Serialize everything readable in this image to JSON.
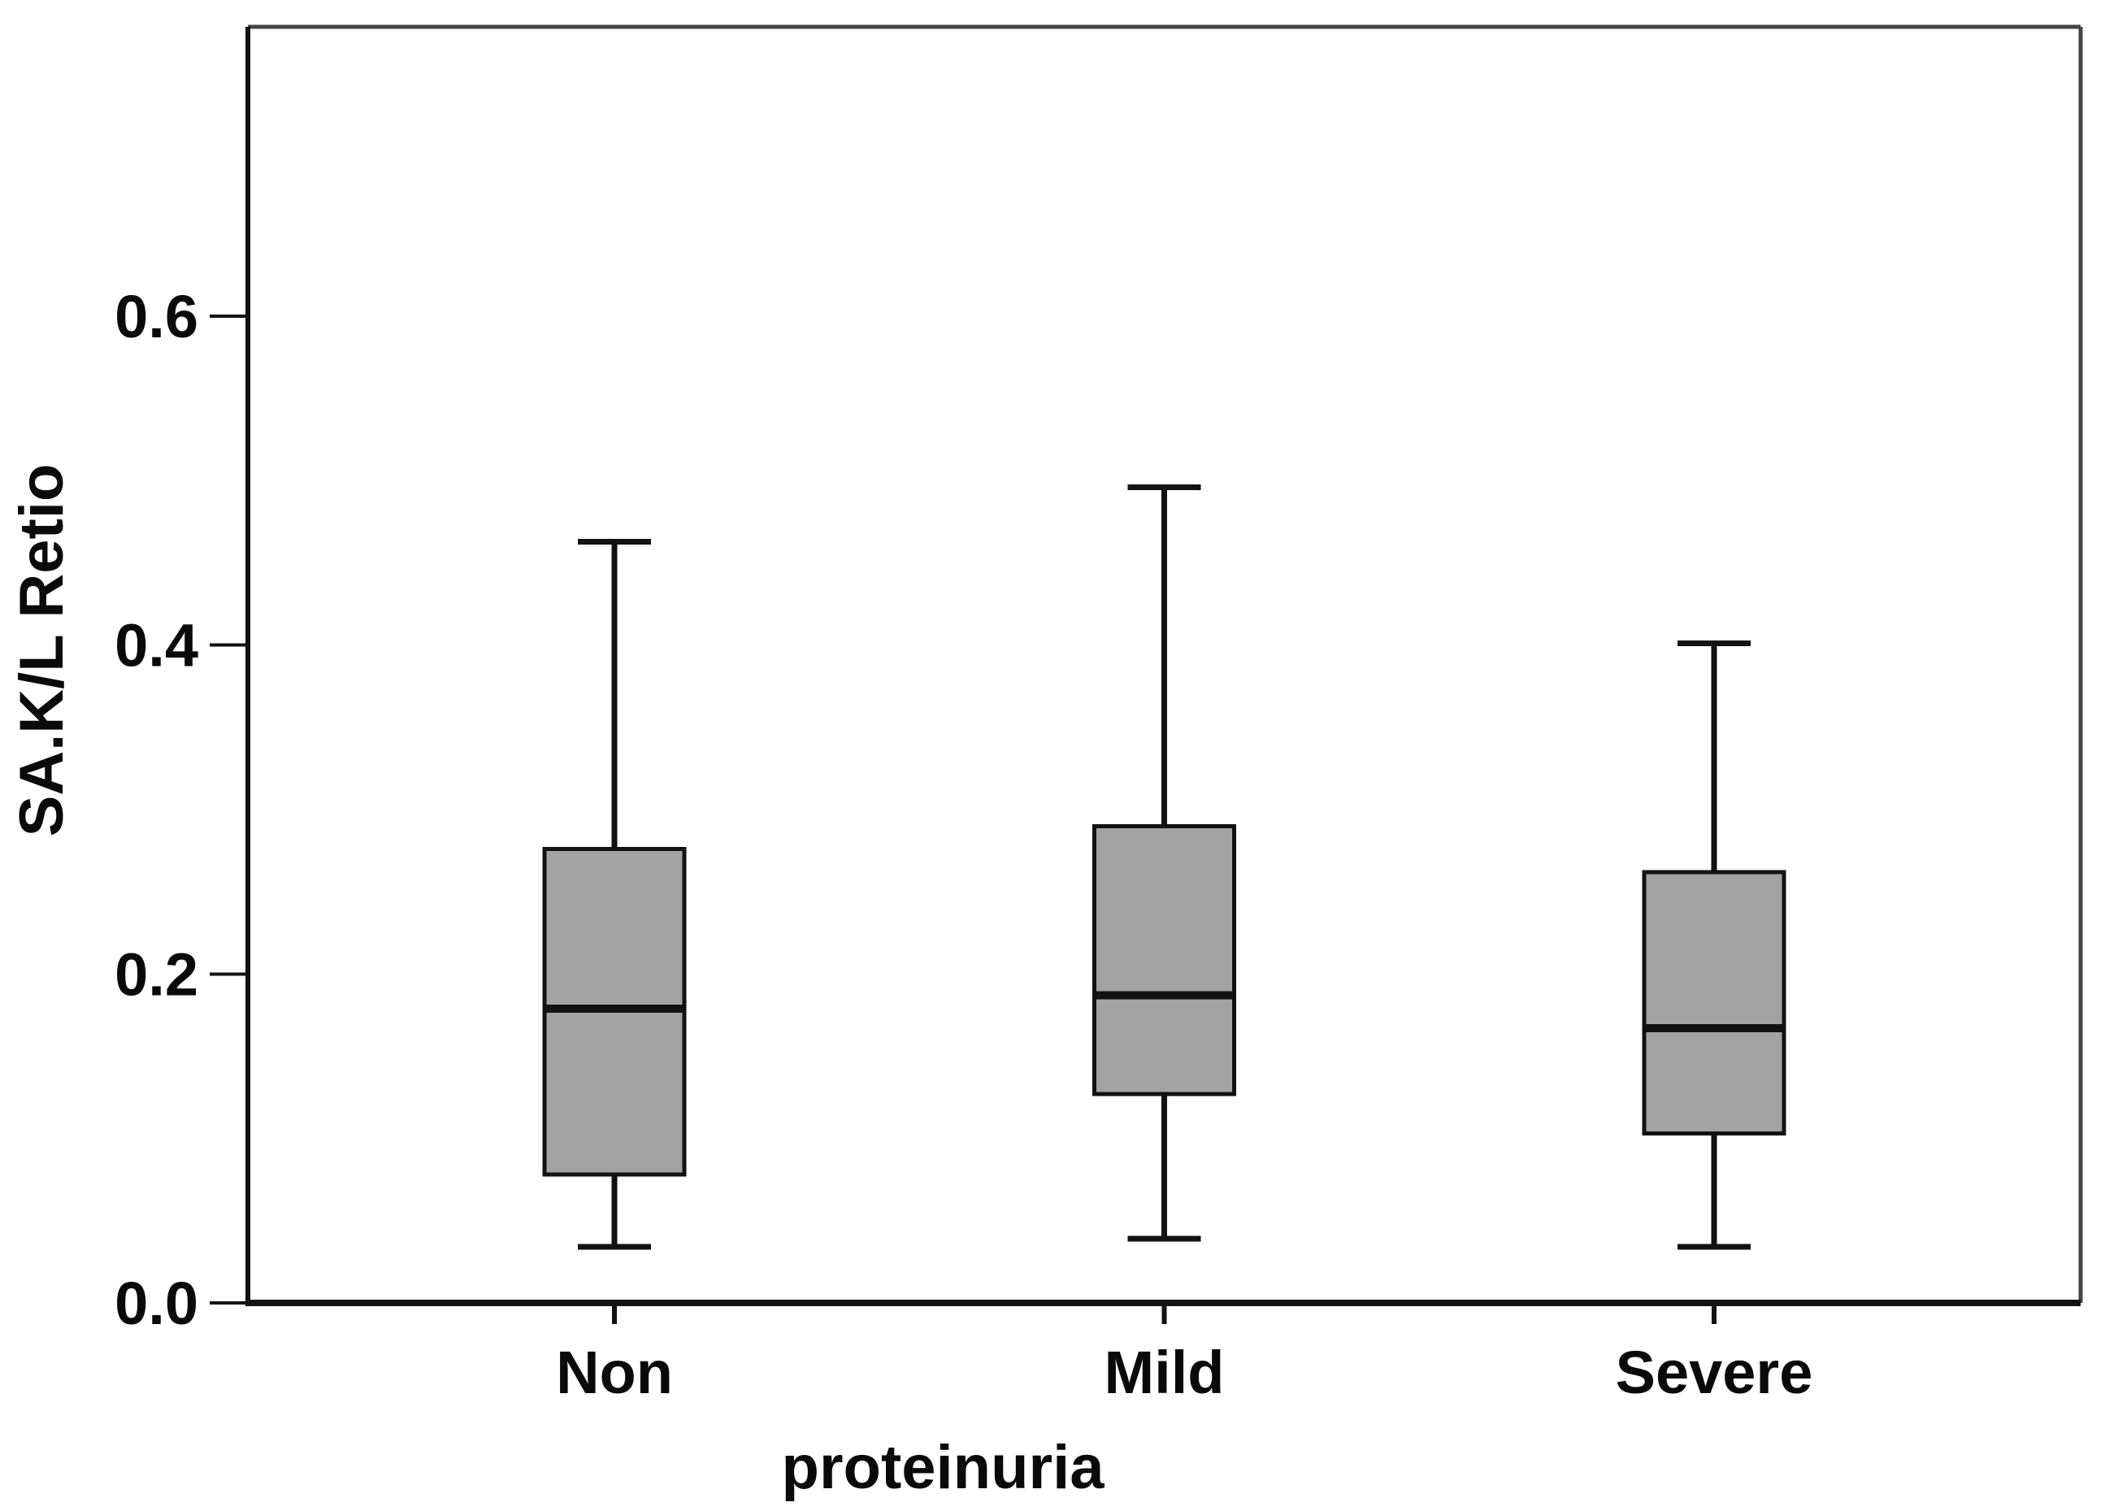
{
  "chart_data": {
    "type": "boxplot",
    "title": "",
    "xlabel": "proteinuria",
    "ylabel": "SA.K/L Retio",
    "categories": [
      "Non",
      "Mild",
      "Severe"
    ],
    "series": [
      {
        "name": "Non",
        "whisker_low": 0.034,
        "q1": 0.078,
        "median": 0.179,
        "q3": 0.276,
        "whisker_high": 0.463
      },
      {
        "name": "Mild",
        "whisker_low": 0.039,
        "q1": 0.127,
        "median": 0.187,
        "q3": 0.29,
        "whisker_high": 0.496
      },
      {
        "name": "Severe",
        "whisker_low": 0.034,
        "q1": 0.103,
        "median": 0.167,
        "q3": 0.262,
        "whisker_high": 0.401
      }
    ],
    "yticks": [
      0.0,
      0.2,
      0.4,
      0.6
    ],
    "ytick_labels": [
      "0.0",
      "0.2",
      "0.4",
      "0.6"
    ],
    "ylim": [
      0,
      0.776
    ],
    "grid": false,
    "legend": "none",
    "colors": {
      "box_fill": "#a3a3a3",
      "line": "#121212",
      "frame": "#454545",
      "text": "#0a0a0a",
      "background": "#ffffff"
    }
  }
}
